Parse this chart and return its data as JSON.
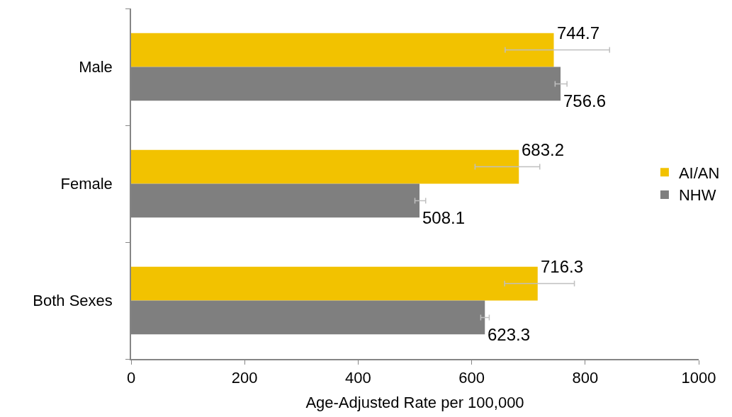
{
  "chart_data": {
    "type": "bar",
    "orientation": "horizontal",
    "xlabel": "Age-Adjusted Rate per 100,000",
    "categories": [
      "Male",
      "Female",
      "Both Sexes"
    ],
    "series": [
      {
        "name": "AI/AN",
        "color": "#f2c200",
        "values": [
          744.7,
          683.2,
          716.3
        ],
        "errors": [
          [
            659,
            843
          ],
          [
            606,
            720
          ],
          [
            658,
            781
          ]
        ]
      },
      {
        "name": "NHW",
        "color": "#7f7f7f",
        "values": [
          756.6,
          508.1,
          623.3
        ],
        "errors": [
          [
            747,
            768
          ],
          [
            500,
            519
          ],
          [
            616,
            631
          ]
        ]
      }
    ],
    "xlim": [
      0,
      1000
    ],
    "xticks": [
      0,
      200,
      400,
      600,
      800,
      1000
    ],
    "data_labels": true,
    "legend": "right"
  }
}
